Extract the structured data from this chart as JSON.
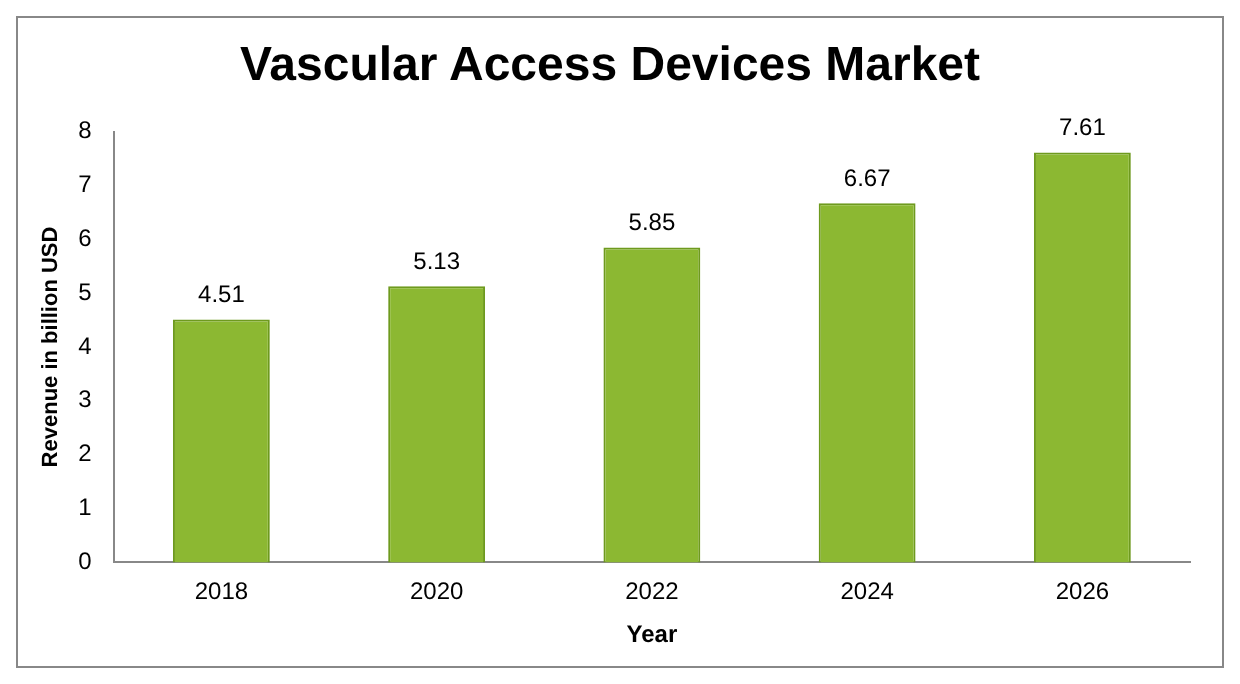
{
  "chart_data": {
    "type": "bar",
    "title": "Vascular Access Devices Market",
    "xlabel": "Year",
    "ylabel": "Revenue in billion USD",
    "categories": [
      "2018",
      "2020",
      "2022",
      "2024",
      "2026"
    ],
    "values": [
      4.51,
      5.13,
      5.85,
      6.67,
      7.61
    ],
    "color": "#8cb832",
    "ylim": [
      0,
      8
    ],
    "yticks": [
      0,
      1,
      2,
      3,
      4,
      5,
      6,
      7,
      8
    ],
    "grid": false,
    "legend": false,
    "data_labels": true
  }
}
